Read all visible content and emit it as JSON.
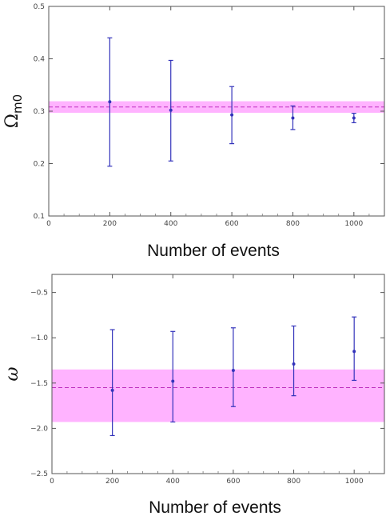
{
  "chart_data": [
    {
      "type": "scatter",
      "xlabel": "Number of events",
      "ylabel": "Ω",
      "ylabel_sub": "m0",
      "xlim": [
        0,
        1100
      ],
      "ylim": [
        0.1,
        0.5
      ],
      "xticks": [
        "0",
        "200",
        "400",
        "600",
        "800",
        "1000"
      ],
      "xtick_values": [
        0,
        200,
        400,
        600,
        800,
        1000
      ],
      "yticks": [
        "0.1",
        "0.2",
        "0.3",
        "0.4",
        "0.5"
      ],
      "ytick_values": [
        0.1,
        0.2,
        0.3,
        0.4,
        0.5
      ],
      "band": {
        "low": 0.297,
        "high": 0.319,
        "center": 0.308,
        "color": "#ff99ff"
      },
      "points": [
        {
          "x": 200,
          "y": 0.318,
          "low": 0.195,
          "high": 0.44
        },
        {
          "x": 400,
          "y": 0.302,
          "low": 0.205,
          "high": 0.397
        },
        {
          "x": 600,
          "y": 0.293,
          "low": 0.238,
          "high": 0.347
        },
        {
          "x": 800,
          "y": 0.287,
          "low": 0.265,
          "high": 0.31
        },
        {
          "x": 1000,
          "y": 0.287,
          "low": 0.278,
          "high": 0.296
        }
      ],
      "point_color": "#3333bb",
      "grid": false
    },
    {
      "type": "scatter",
      "xlabel": "Number of events",
      "ylabel": "ω",
      "xlim": [
        0,
        1100
      ],
      "ylim": [
        -2.5,
        -0.3
      ],
      "xticks": [
        "0",
        "200",
        "400",
        "600",
        "800",
        "1000"
      ],
      "xtick_values": [
        0,
        200,
        400,
        600,
        800,
        1000
      ],
      "yticks": [
        "−2.5",
        "−2.0",
        "−1.5",
        "−1.0",
        "−0.5"
      ],
      "ytick_values": [
        -2.5,
        -2.0,
        -1.5,
        -1.0,
        -0.5
      ],
      "band": {
        "low": -1.93,
        "high": -1.35,
        "center": -1.55,
        "color": "#ff99ff"
      },
      "points": [
        {
          "x": 200,
          "y": -1.58,
          "low": -2.08,
          "high": -0.91
        },
        {
          "x": 400,
          "y": -1.48,
          "low": -1.93,
          "high": -0.93
        },
        {
          "x": 600,
          "y": -1.36,
          "low": -1.76,
          "high": -0.89
        },
        {
          "x": 800,
          "y": -1.29,
          "low": -1.64,
          "high": -0.87
        },
        {
          "x": 1000,
          "y": -1.15,
          "low": -1.47,
          "high": -0.77
        }
      ],
      "point_color": "#3333bb",
      "grid": false
    }
  ]
}
